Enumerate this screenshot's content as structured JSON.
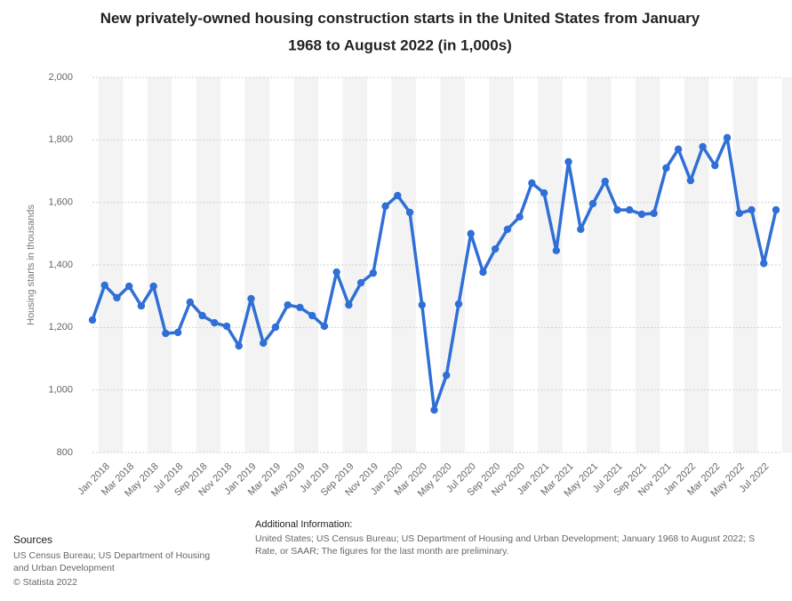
{
  "chart_data": {
    "type": "line",
    "title": "New privately-owned housing construction starts in the United States from January 1968 to August 2022 (in 1,000s)",
    "y_label": "Housing starts in thousands",
    "categories": [
      null,
      "Jan 2018",
      null,
      "Mar 2018",
      null,
      "May 2018",
      null,
      "Jul 2018",
      null,
      "Sep 2018",
      null,
      "Nov 2018",
      null,
      "Jan 2019",
      null,
      "Mar 2019",
      null,
      "May 2019",
      null,
      "Jul 2019",
      null,
      "Sep 2019",
      null,
      "Nov 2019",
      null,
      "Jan 2020",
      null,
      "Mar 2020",
      null,
      "May 2020",
      null,
      "Jul 2020",
      null,
      "Sep 2020",
      null,
      "Nov 2020",
      null,
      "Jan 2021",
      null,
      "Mar 2021",
      null,
      "May 2021",
      null,
      "Jul 2021",
      null,
      "Sep 2021",
      null,
      "Nov 2021",
      null,
      "Jan 2022",
      null,
      "Mar 2022",
      null,
      "May 2022",
      null,
      "Jul 2022",
      null
    ],
    "series": [
      {
        "name": "Housing starts",
        "color": "#2f6fd6",
        "values": [
          1224,
          1335,
          1295,
          1332,
          1269,
          1332,
          1181,
          1184,
          1281,
          1238,
          1215,
          1204,
          1141,
          1292,
          1150,
          1201,
          1272,
          1264,
          1238,
          1204,
          1377,
          1272,
          1343,
          1374,
          1588,
          1622,
          1568,
          1272,
          936,
          1047,
          1275,
          1500,
          1377,
          1451,
          1514,
          1554,
          1662,
          1630,
          1446,
          1730,
          1514,
          1596,
          1667,
          1576,
          1576,
          1562,
          1565,
          1710,
          1770,
          1670,
          1778,
          1718,
          1807,
          1565,
          1576,
          1405,
          1576
        ]
      }
    ],
    "ylim": [
      800,
      2000
    ],
    "yticks": [
      {
        "value": 800,
        "label": "800"
      },
      {
        "value": 1000,
        "label": "1,000"
      },
      {
        "value": 1200,
        "label": "1,200"
      },
      {
        "value": 1400,
        "label": "1,400"
      },
      {
        "value": 1600,
        "label": "1,600"
      },
      {
        "value": 1800,
        "label": "1,800"
      },
      {
        "value": 2000,
        "label": "2,000"
      }
    ],
    "grid": true
  },
  "footer": {
    "sources_title": "Sources",
    "sources": [
      "US Census Bureau; US Department of Housing",
      "and Urban Development",
      "© Statista 2022"
    ],
    "info_title": "Additional Information:",
    "info": [
      "United States; US Census Bureau; US Department of Housing and Urban Development; January 1968 to August 2022; S",
      "Rate, or SAAR; The figures for the last month are preliminary."
    ]
  }
}
